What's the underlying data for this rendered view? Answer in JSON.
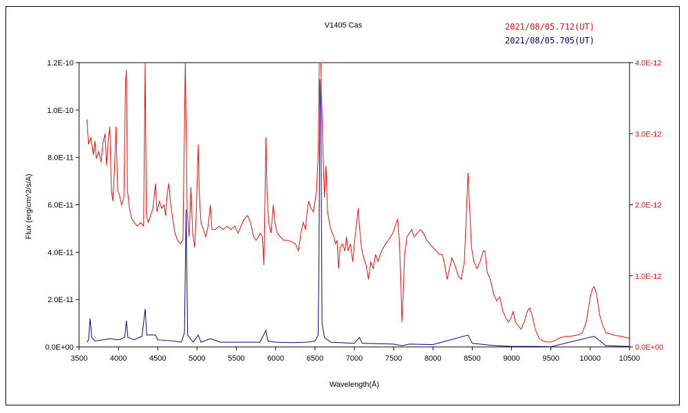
{
  "chart_data": {
    "type": "line",
    "title": "V1405 Cas",
    "xlabel": "Wavelength(Å)",
    "ylabel": "Flux (erg/cm^2/s/A)",
    "xlim": [
      3500,
      10500
    ],
    "ylim_left": [
      0,
      1.2e-10
    ],
    "ylim_right": [
      0,
      4e-12
    ],
    "x_ticks": [
      "3500",
      "4000",
      "4500",
      "5000",
      "5500",
      "6000",
      "6500",
      "7000",
      "7500",
      "8000",
      "8500",
      "9000",
      "9500",
      "10000",
      "10500"
    ],
    "y_left_ticks": [
      "0.0E+00",
      "2.0E-11",
      "4.0E-11",
      "6.0E-11",
      "8.0E-11",
      "1.0E-10",
      "1.2E-10"
    ],
    "y_right_ticks": [
      "0.0E+00",
      "1.0E-12",
      "2.0E-12",
      "3.0E-12",
      "4.0E-12"
    ],
    "grid": false,
    "legend_position": "top-right",
    "series": [
      {
        "name": "2021/08/05.712(UT)",
        "axis": "right",
        "color": "#ff0000",
        "points": [
          [
            3600,
            3.2e-12
          ],
          [
            3620,
            2.85e-12
          ],
          [
            3650,
            2.95e-12
          ],
          [
            3680,
            2.7e-12
          ],
          [
            3700,
            2.9e-12
          ],
          [
            3720,
            2.65e-12
          ],
          [
            3750,
            2.75e-12
          ],
          [
            3780,
            2.6e-12
          ],
          [
            3800,
            2.85e-12
          ],
          [
            3830,
            3e-12
          ],
          [
            3850,
            2.55e-12
          ],
          [
            3870,
            2.9e-12
          ],
          [
            3890,
            3.1e-12
          ],
          [
            3910,
            2.2e-12
          ],
          [
            3930,
            2.05e-12
          ],
          [
            3950,
            2.5e-12
          ],
          [
            3970,
            3.1e-12
          ],
          [
            3990,
            2.2e-12
          ],
          [
            4010,
            2.15e-12
          ],
          [
            4040,
            2e-12
          ],
          [
            4070,
            2.1e-12
          ],
          [
            4090,
            3.7e-12
          ],
          [
            4101,
            3.9e-12
          ],
          [
            4115,
            2.2e-12
          ],
          [
            4140,
            1.95e-12
          ],
          [
            4170,
            1.8e-12
          ],
          [
            4200,
            1.75e-12
          ],
          [
            4240,
            1.7e-12
          ],
          [
            4280,
            1.75e-12
          ],
          [
            4320,
            1.7e-12
          ],
          [
            4340,
            4.5e-12
          ],
          [
            4355,
            1.85e-12
          ],
          [
            4380,
            1.75e-12
          ],
          [
            4410,
            1.85e-12
          ],
          [
            4440,
            1.95e-12
          ],
          [
            4471,
            2.3e-12
          ],
          [
            4490,
            1.9e-12
          ],
          [
            4520,
            2.05e-12
          ],
          [
            4550,
            1.95e-12
          ],
          [
            4580,
            2e-12
          ],
          [
            4600,
            1.85e-12
          ],
          [
            4620,
            2.15e-12
          ],
          [
            4640,
            2.3e-12
          ],
          [
            4660,
            2.05e-12
          ],
          [
            4690,
            1.8e-12
          ],
          [
            4720,
            1.6e-12
          ],
          [
            4750,
            1.5e-12
          ],
          [
            4790,
            1.45e-12
          ],
          [
            4820,
            1.5e-12
          ],
          [
            4850,
            4.5e-12
          ],
          [
            4875,
            1.9e-12
          ],
          [
            4900,
            1.55e-12
          ],
          [
            4922,
            2.25e-12
          ],
          [
            4945,
            1.6e-12
          ],
          [
            4970,
            1.4e-12
          ],
          [
            4990,
            1.9e-12
          ],
          [
            5015,
            2.85e-12
          ],
          [
            5030,
            2.1e-12
          ],
          [
            5050,
            1.75e-12
          ],
          [
            5080,
            1.65e-12
          ],
          [
            5110,
            1.55e-12
          ],
          [
            5140,
            1.7e-12
          ],
          [
            5169,
            2e-12
          ],
          [
            5190,
            1.65e-12
          ],
          [
            5230,
            1.65e-12
          ],
          [
            5280,
            1.7e-12
          ],
          [
            5330,
            1.65e-12
          ],
          [
            5380,
            1.7e-12
          ],
          [
            5430,
            1.65e-12
          ],
          [
            5480,
            1.7e-12
          ],
          [
            5520,
            1.6e-12
          ],
          [
            5560,
            1.7e-12
          ],
          [
            5600,
            1.8e-12
          ],
          [
            5640,
            1.85e-12
          ],
          [
            5680,
            1.75e-12
          ],
          [
            5720,
            1.55e-12
          ],
          [
            5750,
            1.5e-12
          ],
          [
            5780,
            1.55e-12
          ],
          [
            5800,
            1.6e-12
          ],
          [
            5830,
            1.55e-12
          ],
          [
            5850,
            1.15e-12
          ],
          [
            5876,
            2.95e-12
          ],
          [
            5890,
            2.2e-12
          ],
          [
            5910,
            1.75e-12
          ],
          [
            5940,
            1.6e-12
          ],
          [
            5970,
            2e-12
          ],
          [
            5990,
            1.75e-12
          ],
          [
            6020,
            1.6e-12
          ],
          [
            6060,
            1.55e-12
          ],
          [
            6100,
            1.5e-12
          ],
          [
            6150,
            1.5e-12
          ],
          [
            6200,
            1.48e-12
          ],
          [
            6250,
            1.45e-12
          ],
          [
            6290,
            1.35e-12
          ],
          [
            6320,
            1.6e-12
          ],
          [
            6350,
            1.75e-12
          ],
          [
            6380,
            1.65e-12
          ],
          [
            6400,
            1.9e-12
          ],
          [
            6420,
            2.05e-12
          ],
          [
            6450,
            1.95e-12
          ],
          [
            6480,
            1.9e-12
          ],
          [
            6500,
            2.05e-12
          ],
          [
            6520,
            2.2e-12
          ],
          [
            6540,
            2.7e-12
          ],
          [
            6555,
            4.5e-12
          ],
          [
            6575,
            4.5e-12
          ],
          [
            6600,
            2.8e-12
          ],
          [
            6620,
            2.1e-12
          ],
          [
            6640,
            2.55e-12
          ],
          [
            6660,
            1.9e-12
          ],
          [
            6690,
            1.7e-12
          ],
          [
            6720,
            1.6e-12
          ],
          [
            6740,
            1.55e-12
          ],
          [
            6760,
            1.45e-12
          ],
          [
            6780,
            1.5e-12
          ],
          [
            6800,
            1.1e-12
          ],
          [
            6820,
            1.4e-12
          ],
          [
            6850,
            1.45e-12
          ],
          [
            6880,
            1.35e-12
          ],
          [
            6900,
            1.55e-12
          ],
          [
            6920,
            1.35e-12
          ],
          [
            6950,
            1.45e-12
          ],
          [
            6980,
            1.2e-12
          ],
          [
            7010,
            1.55e-12
          ],
          [
            7050,
            1.95e-12
          ],
          [
            7065,
            1.7e-12
          ],
          [
            7090,
            1.4e-12
          ],
          [
            7120,
            1.25e-12
          ],
          [
            7150,
            1.15e-12
          ],
          [
            7180,
            9.5e-13
          ],
          [
            7210,
            1.2e-12
          ],
          [
            7240,
            1.1e-12
          ],
          [
            7270,
            1.3e-12
          ],
          [
            7300,
            1.2e-12
          ],
          [
            7330,
            1.3e-12
          ],
          [
            7370,
            1.4e-12
          ],
          [
            7400,
            1.45e-12
          ],
          [
            7430,
            1.5e-12
          ],
          [
            7460,
            1.55e-12
          ],
          [
            7490,
            1.6e-12
          ],
          [
            7520,
            1.7e-12
          ],
          [
            7550,
            1.8e-12
          ],
          [
            7570,
            1.55e-12
          ],
          [
            7590,
            1e-12
          ],
          [
            7605,
            3.5e-13
          ],
          [
            7620,
            7e-13
          ],
          [
            7640,
            1.3e-12
          ],
          [
            7670,
            1.55e-12
          ],
          [
            7700,
            1.6e-12
          ],
          [
            7730,
            1.65e-12
          ],
          [
            7760,
            1.55e-12
          ],
          [
            7800,
            1.6e-12
          ],
          [
            7840,
            1.65e-12
          ],
          [
            7880,
            1.6e-12
          ],
          [
            7920,
            1.5e-12
          ],
          [
            7960,
            1.45e-12
          ],
          [
            8000,
            1.4e-12
          ],
          [
            8040,
            1.35e-12
          ],
          [
            8080,
            1.3e-12
          ],
          [
            8120,
            1.3e-12
          ],
          [
            8150,
            1.15e-12
          ],
          [
            8180,
            9.5e-13
          ],
          [
            8210,
            1.1e-12
          ],
          [
            8240,
            1.25e-12
          ],
          [
            8280,
            1.15e-12
          ],
          [
            8320,
            1e-12
          ],
          [
            8360,
            9.5e-13
          ],
          [
            8400,
            1.2e-12
          ],
          [
            8430,
            2e-12
          ],
          [
            8446,
            2.45e-12
          ],
          [
            8460,
            2.1e-12
          ],
          [
            8490,
            1.4e-12
          ],
          [
            8520,
            1.2e-12
          ],
          [
            8560,
            1.1e-12
          ],
          [
            8600,
            1.2e-12
          ],
          [
            8640,
            1.35e-12
          ],
          [
            8662,
            1.35e-12
          ],
          [
            8690,
            1.05e-12
          ],
          [
            8730,
            9.5e-13
          ],
          [
            8770,
            7.5e-13
          ],
          [
            8810,
            6.5e-13
          ],
          [
            8850,
            7e-13
          ],
          [
            8890,
            5e-13
          ],
          [
            8930,
            4e-13
          ],
          [
            8960,
            3.5e-13
          ],
          [
            8990,
            4e-13
          ],
          [
            9020,
            5e-13
          ],
          [
            9050,
            3.5e-13
          ],
          [
            9080,
            3e-13
          ],
          [
            9120,
            2.5e-13
          ],
          [
            9160,
            3.5e-13
          ],
          [
            9200,
            5e-13
          ],
          [
            9230,
            5.5e-13
          ],
          [
            9260,
            4.5e-13
          ],
          [
            9300,
            2.5e-13
          ],
          [
            9350,
            1.2e-13
          ],
          [
            9400,
            8e-14
          ],
          [
            9450,
            7e-14
          ],
          [
            9500,
            7e-14
          ],
          [
            9550,
            9e-14
          ],
          [
            9600,
            1.2e-13
          ],
          [
            9650,
            1.4e-13
          ],
          [
            9700,
            1.5e-13
          ],
          [
            9750,
            1.5e-13
          ],
          [
            9800,
            1.6e-13
          ],
          [
            9850,
            1.7e-13
          ],
          [
            9900,
            2e-13
          ],
          [
            9950,
            3.5e-13
          ],
          [
            10000,
            7e-13
          ],
          [
            10030,
            8.2e-13
          ],
          [
            10050,
            8.5e-13
          ],
          [
            10080,
            7.5e-13
          ],
          [
            10120,
            4.5e-13
          ],
          [
            10160,
            3e-13
          ],
          [
            10200,
            2e-13
          ],
          [
            10260,
            1.8e-13
          ],
          [
            10320,
            1.6e-13
          ],
          [
            10400,
            1.5e-13
          ],
          [
            10460,
            1.3e-13
          ],
          [
            10500,
            1.2e-13
          ]
        ]
      },
      {
        "name": "2021/08/05.705(UT)",
        "axis": "left",
        "color": "#000080",
        "points": [
          [
            3600,
            2e-12
          ],
          [
            3620,
            3e-12
          ],
          [
            3640,
            1.2e-11
          ],
          [
            3660,
            4e-12
          ],
          [
            3700,
            2.5e-12
          ],
          [
            3800,
            3e-12
          ],
          [
            3900,
            3.5e-12
          ],
          [
            4000,
            3e-12
          ],
          [
            4080,
            4e-12
          ],
          [
            4101,
            1.1e-11
          ],
          [
            4120,
            4e-12
          ],
          [
            4200,
            3e-12
          ],
          [
            4300,
            4.5e-12
          ],
          [
            4340,
            1.6e-11
          ],
          [
            4360,
            5e-12
          ],
          [
            4471,
            5e-12
          ],
          [
            4500,
            3e-12
          ],
          [
            4700,
            2.5e-12
          ],
          [
            4800,
            2e-12
          ],
          [
            4840,
            6e-12
          ],
          [
            4861,
            5.8e-11
          ],
          [
            4880,
            5e-12
          ],
          [
            4950,
            2e-12
          ],
          [
            5015,
            5e-12
          ],
          [
            5050,
            2e-12
          ],
          [
            5169,
            3.5e-12
          ],
          [
            5300,
            2e-12
          ],
          [
            5500,
            2e-12
          ],
          [
            5800,
            2e-12
          ],
          [
            5876,
            7e-12
          ],
          [
            5900,
            2.5e-12
          ],
          [
            6000,
            2e-12
          ],
          [
            6200,
            1.8e-12
          ],
          [
            6400,
            2e-12
          ],
          [
            6500,
            2.5e-12
          ],
          [
            6540,
            5e-12
          ],
          [
            6550,
            3.5e-11
          ],
          [
            6563,
            1.13e-10
          ],
          [
            6575,
            1e-10
          ],
          [
            6590,
            1e-11
          ],
          [
            6620,
            4e-12
          ],
          [
            6700,
            2e-12
          ],
          [
            7000,
            1.5e-12
          ],
          [
            7065,
            4e-12
          ],
          [
            7100,
            1.5e-12
          ],
          [
            7500,
            1.2e-12
          ],
          [
            7605,
            5e-13
          ],
          [
            7700,
            1.2e-12
          ],
          [
            8000,
            1e-12
          ],
          [
            8446,
            5e-12
          ],
          [
            8500,
            1.5e-12
          ],
          [
            8800,
            5e-13
          ],
          [
            9000,
            2e-13
          ],
          [
            9300,
            2e-13
          ],
          [
            9500,
            1e-13
          ],
          [
            10050,
            4.5e-12
          ],
          [
            10200,
            5e-13
          ],
          [
            10500,
            2e-13
          ]
        ]
      }
    ]
  }
}
